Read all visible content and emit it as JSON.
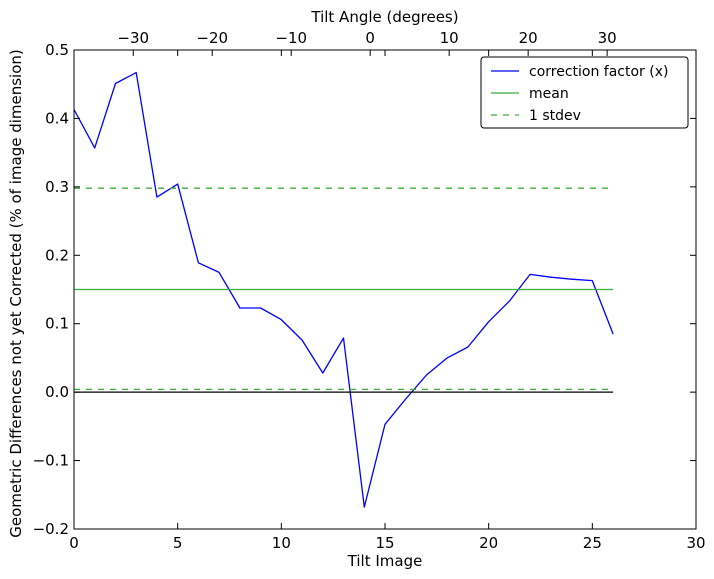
{
  "chart_data": {
    "type": "line",
    "xlabel": "Tilt Image",
    "ylabel": "Geometric Differences not yet Corrected (% of image dimension)",
    "top_xlabel": "Tilt Angle (degrees)",
    "xlim": [
      0,
      30
    ],
    "ylim": [
      -0.2,
      0.5
    ],
    "top_xlim": [
      -37.5,
      41.25
    ],
    "x_ticks": [
      0,
      5,
      10,
      15,
      20,
      25,
      30
    ],
    "y_ticks": [
      -0.2,
      -0.1,
      0.0,
      0.1,
      0.2,
      0.3,
      0.4,
      0.5
    ],
    "y_tick_labels": [
      "−0.2",
      "−0.1",
      "0.0",
      "0.1",
      "0.2",
      "0.3",
      "0.4",
      "0.5"
    ],
    "top_ticks": [
      -30,
      -20,
      -10,
      0,
      10,
      20,
      30
    ],
    "top_tick_labels": [
      "−30",
      "−20",
      "−10",
      "0",
      "10",
      "20",
      "30"
    ],
    "grid": false,
    "legend_position": "top-right",
    "series": [
      {
        "name": "correction factor (x)",
        "color": "#0000ff",
        "style": "solid",
        "x": [
          0,
          1,
          2,
          3,
          4,
          5,
          6,
          7,
          8,
          9,
          10,
          11,
          12,
          13,
          14,
          15,
          16,
          17,
          18,
          19,
          20,
          21,
          22,
          23,
          24,
          25,
          26
        ],
        "y": [
          0.413,
          0.357,
          0.451,
          0.467,
          0.285,
          0.304,
          0.189,
          0.175,
          0.123,
          0.123,
          0.106,
          0.076,
          0.028,
          0.079,
          -0.168,
          -0.047,
          -0.01,
          0.025,
          0.05,
          0.066,
          0.103,
          0.133,
          0.172,
          0.168,
          0.165,
          0.163,
          0.085
        ]
      },
      {
        "name": "mean",
        "color": "#3cac3c",
        "style": "solid",
        "x": [
          0,
          26
        ],
        "y": [
          0.15,
          0.15
        ]
      },
      {
        "name": "1 stdev",
        "color": "#3cac3c",
        "style": "dashed",
        "x": [
          0,
          26
        ],
        "y": [
          0.298,
          0.298
        ]
      },
      {
        "name": "",
        "color": "#3cac3c",
        "style": "dashed",
        "x": [
          0,
          26
        ],
        "y": [
          0.004,
          0.004
        ]
      },
      {
        "name": "",
        "color": "#000000",
        "style": "solid",
        "x": [
          0,
          26
        ],
        "y": [
          0.0,
          0.0
        ]
      }
    ]
  }
}
